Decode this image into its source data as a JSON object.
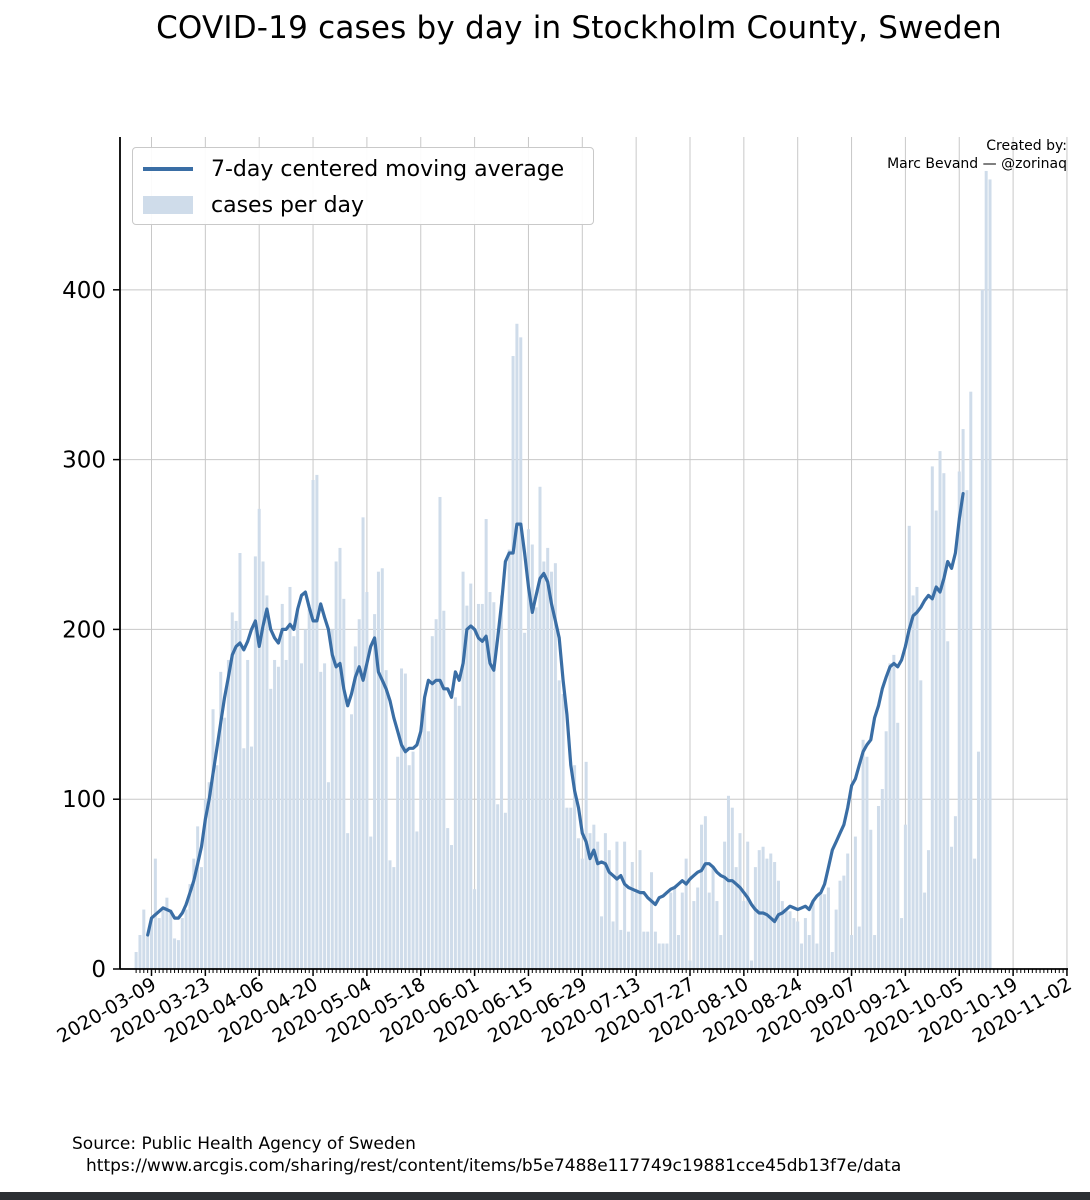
{
  "chart_data": {
    "type": "bar",
    "title": "COVID-19 cases by day in Stockholm County, Sweden",
    "xlabel": "",
    "ylabel": "",
    "ylim": [
      0,
      490
    ],
    "yticks": [
      0,
      100,
      200,
      300,
      400
    ],
    "x_start_date": "2020-03-05",
    "xticks": [
      "2020-03-09",
      "2020-03-23",
      "2020-04-06",
      "2020-04-20",
      "2020-05-04",
      "2020-05-18",
      "2020-06-01",
      "2020-06-15",
      "2020-06-29",
      "2020-07-13",
      "2020-07-27",
      "2020-08-10",
      "2020-08-24",
      "2020-09-07",
      "2020-09-21",
      "2020-10-05",
      "2020-10-19",
      "2020-11-02"
    ],
    "legend": [
      "7-day centered moving average",
      "cases per day"
    ],
    "credit": [
      "Created by:",
      "Marc Bevand — @zorinaq"
    ],
    "series": [
      {
        "name": "cases per day",
        "kind": "bar",
        "color": "#cfdcea",
        "values": [
          10,
          20,
          35,
          20,
          30,
          65,
          30,
          35,
          42,
          35,
          18,
          17,
          30,
          35,
          50,
          65,
          84,
          60,
          100,
          110,
          153,
          120,
          175,
          148,
          182,
          210,
          205,
          245,
          130,
          182,
          131,
          243,
          271,
          240,
          220,
          165,
          182,
          178,
          215,
          182,
          225,
          196,
          212,
          180,
          200,
          212,
          288,
          291,
          175,
          180,
          110,
          200,
          240,
          248,
          218,
          80,
          150,
          190,
          206,
          266,
          222,
          78,
          209,
          234,
          236,
          176,
          64,
          60,
          125,
          177,
          174,
          120,
          128,
          81,
          140,
          158,
          140,
          196,
          206,
          278,
          211,
          83,
          73,
          160,
          155,
          234,
          214,
          227,
          47,
          215,
          215,
          265,
          222,
          216,
          97,
          220,
          92,
          247,
          361,
          380,
          372,
          198,
          259,
          250,
          213,
          284,
          240,
          248,
          234,
          239,
          170,
          162,
          95,
          95,
          120,
          77,
          65,
          122,
          80,
          85,
          75,
          31,
          80,
          70,
          28,
          75,
          23,
          75,
          22,
          63,
          45,
          70,
          22,
          22,
          57,
          22,
          15,
          15,
          15,
          45,
          48,
          20,
          45,
          65,
          5,
          40,
          48,
          85,
          90,
          45,
          60,
          40,
          20,
          75,
          102,
          95,
          60,
          80,
          40,
          75,
          5,
          60,
          70,
          72,
          65,
          68,
          63,
          52,
          40,
          35,
          34,
          30,
          28,
          15,
          30,
          20,
          40,
          15,
          45,
          44,
          48,
          10,
          35,
          52,
          55,
          68,
          20,
          78,
          25,
          135,
          125,
          82,
          20,
          96,
          106,
          140,
          180,
          185,
          145,
          30,
          85,
          261,
          220,
          225,
          170,
          45,
          70,
          296,
          270,
          305,
          292,
          193,
          72,
          90,
          293,
          318,
          282,
          340,
          65,
          128,
          400,
          470,
          465
        ]
      },
      {
        "name": "7-day centered moving average",
        "kind": "line",
        "color": "#3a6ea5",
        "values": [
          null,
          null,
          null,
          20,
          30,
          32,
          34,
          36,
          35,
          34,
          30,
          30,
          33,
          38,
          45,
          52,
          62,
          72,
          88,
          100,
          115,
          130,
          145,
          160,
          172,
          185,
          190,
          192,
          188,
          193,
          200,
          205,
          190,
          202,
          212,
          200,
          195,
          192,
          200,
          200,
          203,
          200,
          212,
          220,
          222,
          213,
          205,
          205,
          215,
          207,
          200,
          185,
          178,
          180,
          165,
          155,
          162,
          172,
          178,
          170,
          180,
          190,
          195,
          175,
          170,
          165,
          158,
          148,
          140,
          132,
          128,
          130,
          130,
          132,
          140,
          160,
          170,
          168,
          170,
          170,
          165,
          165,
          160,
          175,
          170,
          180,
          200,
          202,
          200,
          195,
          193,
          196,
          180,
          176,
          195,
          215,
          240,
          245,
          245,
          262,
          262,
          245,
          225,
          210,
          220,
          230,
          233,
          228,
          215,
          205,
          195,
          170,
          150,
          120,
          105,
          95,
          80,
          75,
          65,
          70,
          62,
          63,
          62,
          57,
          55,
          53,
          55,
          50,
          48,
          47,
          46,
          45,
          45,
          42,
          40,
          38,
          42,
          43,
          45,
          47,
          48,
          50,
          52,
          50,
          53,
          55,
          57,
          58,
          62,
          62,
          60,
          57,
          55,
          54,
          52,
          52,
          50,
          48,
          45,
          42,
          38,
          35,
          33,
          33,
          32,
          30,
          28,
          32,
          33,
          35,
          37,
          36,
          35,
          36,
          37,
          35,
          40,
          43,
          45,
          50,
          60,
          70,
          75,
          80,
          85,
          95,
          108,
          112,
          120,
          128,
          132,
          135,
          148,
          155,
          165,
          172,
          178,
          180,
          178,
          182,
          190,
          200,
          208,
          210,
          213,
          217,
          220,
          218,
          225,
          222,
          230,
          240,
          236,
          245,
          265,
          280
        ]
      }
    ]
  },
  "source": {
    "label": "Source: Public Health Agency of Sweden",
    "url": "https://www.arcgis.com/sharing/rest/content/items/b5e7488e117749c19881cce45db13f7e/data"
  }
}
